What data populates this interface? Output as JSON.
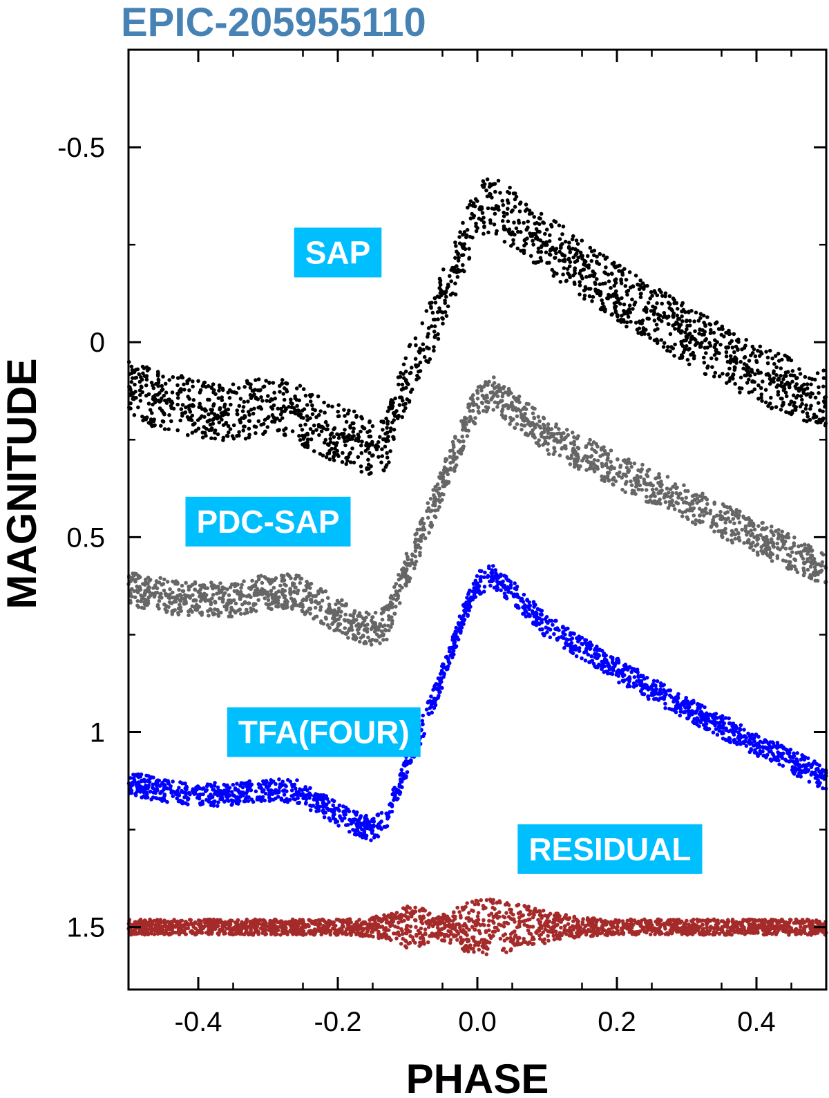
{
  "chart_data": {
    "type": "scatter",
    "title": "EPIC-205955110",
    "title_color": "#4682B4",
    "xlabel": "PHASE",
    "ylabel": "MAGNITUDE",
    "xlim": [
      -0.5,
      0.5
    ],
    "ylim": [
      1.66,
      -0.75
    ],
    "y_inverted": true,
    "grid": false,
    "xticks": [
      {
        "value": -0.4,
        "label": "-0.4"
      },
      {
        "value": -0.2,
        "label": "-0.2"
      },
      {
        "value": 0.0,
        "label": "0.0"
      },
      {
        "value": 0.2,
        "label": "0.2"
      },
      {
        "value": 0.4,
        "label": "0.4"
      }
    ],
    "yticks": [
      {
        "value": -0.5,
        "label": "-0.5"
      },
      {
        "value": 0,
        "label": "0"
      },
      {
        "value": 0.5,
        "label": "0.5"
      },
      {
        "value": 1,
        "label": "1"
      },
      {
        "value": 1.5,
        "label": "1.5"
      }
    ],
    "label_box_color": "#00BFFF",
    "series": [
      {
        "name": "SAP",
        "color": "#000000",
        "x": [
          -0.5,
          -0.45,
          -0.4,
          -0.35,
          -0.3,
          -0.26,
          -0.22,
          -0.18,
          -0.15,
          -0.13,
          -0.1,
          -0.07,
          -0.04,
          -0.02,
          0.0,
          0.02,
          0.05,
          0.1,
          0.2,
          0.3,
          0.4,
          0.5
        ],
        "y": [
          0.12,
          0.15,
          0.17,
          0.18,
          0.16,
          0.18,
          0.22,
          0.25,
          0.27,
          0.25,
          0.09,
          -0.02,
          -0.15,
          -0.25,
          -0.33,
          -0.35,
          -0.32,
          -0.25,
          -0.13,
          -0.02,
          0.08,
          0.15
        ],
        "scatter": 0.075
      },
      {
        "name": "PDC-SAP",
        "color": "#666666",
        "x": [
          -0.5,
          -0.45,
          -0.4,
          -0.35,
          -0.3,
          -0.26,
          -0.22,
          -0.18,
          -0.15,
          -0.13,
          -0.1,
          -0.07,
          -0.04,
          -0.02,
          0.0,
          0.02,
          0.05,
          0.1,
          0.2,
          0.3,
          0.4,
          0.5
        ],
        "y": [
          0.63,
          0.65,
          0.66,
          0.66,
          0.64,
          0.64,
          0.68,
          0.72,
          0.74,
          0.72,
          0.58,
          0.45,
          0.32,
          0.23,
          0.15,
          0.13,
          0.17,
          0.24,
          0.33,
          0.41,
          0.5,
          0.58
        ],
        "scatter": 0.045
      },
      {
        "name": "TFA(FOUR)",
        "color": "#0000FF",
        "x": [
          -0.5,
          -0.45,
          -0.4,
          -0.35,
          -0.3,
          -0.26,
          -0.22,
          -0.18,
          -0.15,
          -0.13,
          -0.1,
          -0.07,
          -0.04,
          -0.02,
          0.0,
          0.02,
          0.05,
          0.1,
          0.2,
          0.3,
          0.4,
          0.5
        ],
        "y": [
          1.13,
          1.15,
          1.16,
          1.16,
          1.15,
          1.15,
          1.19,
          1.23,
          1.25,
          1.22,
          1.08,
          0.95,
          0.81,
          0.7,
          0.62,
          0.6,
          0.64,
          0.73,
          0.84,
          0.94,
          1.03,
          1.12
        ],
        "scatter": 0.03
      },
      {
        "name": "RESIDUAL",
        "color": "#A52A2A",
        "x": [
          -0.5,
          -0.4,
          -0.3,
          -0.2,
          -0.15,
          -0.12,
          -0.1,
          -0.08,
          -0.06,
          -0.04,
          -0.02,
          0.0,
          0.03,
          0.06,
          0.1,
          0.15,
          0.2,
          0.3,
          0.4,
          0.5
        ],
        "y": [
          1.5,
          1.5,
          1.5,
          1.5,
          1.5,
          1.5,
          1.5,
          1.5,
          1.5,
          1.5,
          1.5,
          1.5,
          1.5,
          1.5,
          1.5,
          1.5,
          1.5,
          1.5,
          1.5,
          1.5
        ],
        "spread": [
          0.02,
          0.02,
          0.02,
          0.02,
          0.025,
          0.04,
          0.055,
          0.05,
          0.03,
          0.04,
          0.06,
          0.075,
          0.07,
          0.06,
          0.04,
          0.025,
          0.02,
          0.02,
          0.02,
          0.02
        ]
      }
    ],
    "annotations": [
      {
        "text": "SAP",
        "x": -0.2,
        "y": -0.23
      },
      {
        "text": "PDC-SAP",
        "x": -0.3,
        "y": 0.46
      },
      {
        "text": "TFA(FOUR)",
        "x": -0.22,
        "y": 1.0
      },
      {
        "text": "RESIDUAL",
        "x": 0.19,
        "y": 1.3
      }
    ]
  }
}
